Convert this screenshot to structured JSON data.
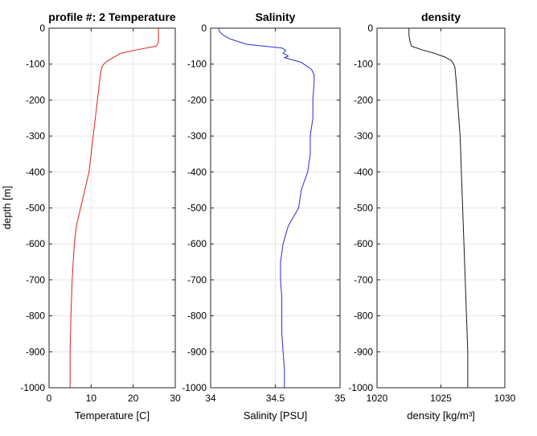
{
  "figure": {
    "ylabel": "depth [m]"
  },
  "chart_data": [
    {
      "type": "line",
      "title": "profile #: 2  Temperature",
      "xlabel": "Temperature [C]",
      "xlim": [
        0,
        30
      ],
      "ylim": [
        -1000,
        0
      ],
      "xticks": [
        "0",
        "10",
        "20",
        "30"
      ],
      "xtick_values": [
        0,
        10,
        20,
        30
      ],
      "yticks": [
        "0",
        "-100",
        "-200",
        "-300",
        "-400",
        "-500",
        "-600",
        "-700",
        "-800",
        "-900",
        "-1000"
      ],
      "ytick_values": [
        0,
        -100,
        -200,
        -300,
        -400,
        -500,
        -600,
        -700,
        -800,
        -900,
        -1000
      ],
      "grid": true,
      "color": "#e0201b",
      "series": [
        {
          "x": [
            26.0,
            26.0,
            26.0,
            25.5,
            21.0,
            17.0,
            15.5,
            14.0,
            13.0,
            12.5,
            12.2,
            12.0,
            11.5,
            11.0,
            10.5,
            10.0,
            9.5,
            8.5,
            7.5,
            6.5,
            6.0,
            5.5,
            5.2,
            5.0,
            5.0,
            5.0
          ],
          "y": [
            0,
            -20,
            -40,
            -50,
            -60,
            -70,
            -80,
            -90,
            -100,
            -110,
            -130,
            -150,
            -200,
            -250,
            -300,
            -350,
            -400,
            -450,
            -500,
            -550,
            -600,
            -700,
            -800,
            -900,
            -950,
            -1000
          ]
        }
      ]
    },
    {
      "type": "line",
      "title": "Salinity",
      "xlabel": "Salinity [PSU]",
      "xlim": [
        34,
        35
      ],
      "ylim": [
        -1000,
        0
      ],
      "xticks": [
        "34",
        "34.5",
        "35"
      ],
      "xtick_values": [
        34,
        34.5,
        35
      ],
      "yticks": [
        "0",
        "-100",
        "-200",
        "-300",
        "-400",
        "-500",
        "-600",
        "-700",
        "-800",
        "-900",
        "-1000"
      ],
      "ytick_values": [
        0,
        -100,
        -200,
        -300,
        -400,
        -500,
        -600,
        -700,
        -800,
        -900,
        -1000
      ],
      "grid": true,
      "color": "#2b2bd4",
      "series": [
        {
          "x": [
            34.06,
            34.07,
            34.1,
            34.15,
            34.28,
            34.55,
            34.58,
            34.56,
            34.59,
            34.6,
            34.57,
            34.7,
            34.78,
            34.8,
            34.8,
            34.79,
            34.79,
            34.77,
            34.77,
            34.75,
            34.73,
            34.7,
            34.68,
            34.6,
            34.56,
            34.54,
            34.54,
            34.55,
            34.55,
            34.55,
            34.56,
            34.57,
            34.57
          ],
          "y": [
            0,
            -10,
            -20,
            -30,
            -45,
            -55,
            -62,
            -70,
            -75,
            -78,
            -82,
            -95,
            -115,
            -130,
            -150,
            -200,
            -250,
            -300,
            -350,
            -400,
            -420,
            -450,
            -500,
            -550,
            -600,
            -650,
            -700,
            -750,
            -800,
            -850,
            -900,
            -950,
            -1000
          ]
        }
      ]
    },
    {
      "type": "line",
      "title": "density",
      "xlabel": "density [kg/m³]",
      "xlim": [
        1020,
        1030
      ],
      "ylim": [
        -1000,
        0
      ],
      "xticks": [
        "1020",
        "1025",
        "1030"
      ],
      "xtick_values": [
        1020,
        1025,
        1030
      ],
      "yticks": [
        "0",
        "-100",
        "-200",
        "-300",
        "-400",
        "-500",
        "-600",
        "-700",
        "-800",
        "-900",
        "-1000"
      ],
      "ytick_values": [
        0,
        -100,
        -200,
        -300,
        -400,
        -500,
        -600,
        -700,
        -800,
        -900,
        -1000
      ],
      "grid": true,
      "color": "#1a1a1a",
      "series": [
        {
          "x": [
            1022.5,
            1022.5,
            1022.6,
            1022.7,
            1023.5,
            1024.5,
            1025.3,
            1025.8,
            1026.0,
            1026.1,
            1026.2,
            1026.3,
            1026.4,
            1026.5,
            1026.6,
            1026.7,
            1026.8,
            1026.9,
            1027.0,
            1027.1,
            1027.1
          ],
          "y": [
            0,
            -20,
            -40,
            -50,
            -60,
            -70,
            -80,
            -90,
            -100,
            -110,
            -150,
            -200,
            -250,
            -300,
            -400,
            -500,
            -600,
            -700,
            -800,
            -900,
            -1000
          ]
        }
      ]
    }
  ]
}
